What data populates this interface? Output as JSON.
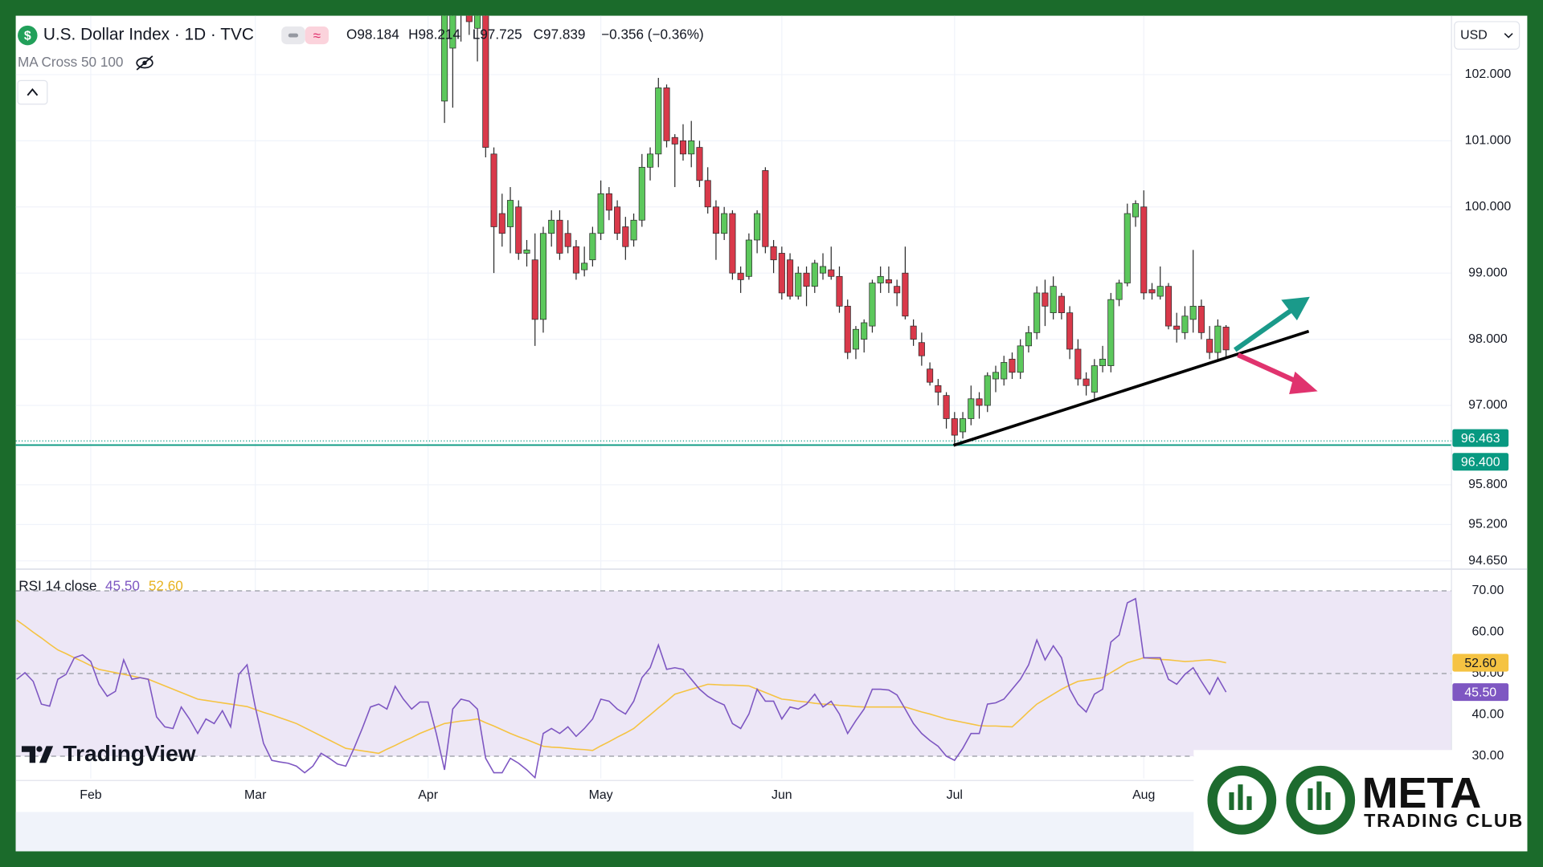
{
  "indicator": "MA Cross 50 100",
  "currency": "USD",
  "brand": "TradingView",
  "watermark": {
    "title": "META",
    "subtitle": "TRADING CLUB"
  },
  "chart_data": [
    {
      "type": "candlestick",
      "title": "U.S. Dollar Index · 1D · TVC",
      "header_values": [
        "O98.184",
        "H98.214",
        "L97.725",
        "C97.839",
        "−0.356 (−0.36%)"
      ],
      "up_color": "#5cc85c",
      "down_color": "#d9394a",
      "wick_color": "#2b2b2b",
      "grid": true,
      "categories": [
        null,
        null,
        null,
        null,
        null,
        null,
        null,
        null,
        null,
        "Feb",
        null,
        null,
        null,
        null,
        null,
        null,
        null,
        null,
        null,
        null,
        null,
        null,
        null,
        null,
        null,
        null,
        null,
        null,
        null,
        "Mar",
        null,
        null,
        null,
        null,
        null,
        null,
        null,
        null,
        null,
        null,
        null,
        null,
        null,
        null,
        null,
        null,
        null,
        null,
        null,
        null,
        "Apr",
        null,
        null,
        null,
        null,
        null,
        null,
        null,
        null,
        null,
        null,
        null,
        null,
        null,
        null,
        null,
        null,
        null,
        null,
        null,
        null,
        "May",
        null,
        null,
        null,
        null,
        null,
        null,
        null,
        null,
        null,
        null,
        null,
        null,
        null,
        null,
        null,
        null,
        null,
        null,
        null,
        null,
        null,
        "Jun",
        null,
        null,
        null,
        null,
        null,
        null,
        null,
        null,
        null,
        null,
        null,
        null,
        null,
        null,
        null,
        null,
        null,
        null,
        null,
        null,
        "Jul",
        null,
        null,
        null,
        null,
        null,
        null,
        null,
        null,
        null,
        null,
        null,
        null,
        null,
        null,
        null,
        null,
        null,
        null,
        null,
        null,
        null,
        null,
        "Aug",
        null,
        null,
        null,
        null,
        null,
        null,
        null,
        null,
        null,
        null
      ],
      "ohlc": [
        null,
        null,
        null,
        null,
        null,
        null,
        null,
        null,
        null,
        null,
        null,
        null,
        null,
        null,
        null,
        null,
        null,
        null,
        null,
        null,
        null,
        null,
        null,
        null,
        null,
        null,
        null,
        null,
        null,
        null,
        null,
        null,
        null,
        null,
        null,
        null,
        null,
        null,
        null,
        null,
        null,
        null,
        null,
        null,
        null,
        null,
        null,
        null,
        null,
        null,
        null,
        null,
        [
          101.6,
          103.2,
          101.27,
          103.0
        ],
        [
          102.4,
          103.3,
          101.5,
          102.9
        ],
        [
          103.3,
          103.6,
          102.5,
          102.9
        ],
        [
          103.1,
          103.5,
          102.6,
          102.8
        ],
        [
          102.7,
          103.2,
          102.2,
          103.0
        ],
        [
          102.9,
          103.2,
          100.75,
          100.9
        ],
        [
          100.8,
          100.9,
          99.0,
          99.7
        ],
        [
          99.9,
          100.2,
          99.4,
          99.6
        ],
        [
          99.7,
          100.3,
          99.3,
          100.1
        ],
        [
          100.0,
          100.1,
          99.2,
          99.3
        ],
        [
          99.3,
          99.5,
          99.1,
          99.35
        ],
        [
          99.2,
          99.6,
          97.9,
          98.3
        ],
        [
          98.3,
          99.7,
          98.1,
          99.6
        ],
        [
          99.6,
          99.95,
          99.4,
          99.8
        ],
        [
          99.8,
          99.95,
          99.2,
          99.3
        ],
        [
          99.6,
          99.8,
          99.3,
          99.4
        ],
        [
          99.4,
          99.5,
          98.9,
          99.0
        ],
        [
          99.05,
          99.4,
          98.95,
          99.15
        ],
        [
          99.2,
          99.7,
          99.1,
          99.6
        ],
        [
          99.6,
          100.4,
          99.5,
          100.2
        ],
        [
          100.2,
          100.3,
          99.8,
          99.95
        ],
        [
          100.0,
          100.1,
          99.5,
          99.6
        ],
        [
          99.7,
          99.85,
          99.2,
          99.4
        ],
        [
          99.5,
          99.9,
          99.4,
          99.8
        ],
        [
          99.8,
          100.8,
          99.7,
          100.6
        ],
        [
          100.6,
          100.9,
          100.4,
          100.8
        ],
        [
          100.8,
          101.95,
          100.6,
          101.8
        ],
        [
          101.8,
          101.85,
          100.9,
          101.0
        ],
        [
          101.05,
          101.1,
          100.3,
          100.95
        ],
        [
          101.0,
          101.25,
          100.7,
          100.8
        ],
        [
          100.8,
          101.3,
          100.6,
          101.0
        ],
        [
          100.9,
          101.0,
          100.3,
          100.4
        ],
        [
          100.4,
          100.6,
          99.9,
          100.0
        ],
        [
          100.0,
          100.1,
          99.2,
          99.6
        ],
        [
          99.6,
          100.0,
          99.5,
          99.9
        ],
        [
          99.9,
          99.95,
          98.9,
          99.0
        ],
        [
          99.0,
          99.1,
          98.7,
          98.9
        ],
        [
          98.95,
          99.6,
          98.9,
          99.5
        ],
        [
          99.5,
          99.95,
          99.3,
          99.9
        ],
        [
          100.55,
          100.6,
          99.3,
          99.4
        ],
        [
          99.4,
          99.5,
          99.0,
          99.2
        ],
        [
          99.3,
          99.4,
          98.6,
          98.7
        ],
        [
          99.2,
          99.3,
          98.6,
          98.65
        ],
        [
          98.65,
          99.1,
          98.6,
          99.0
        ],
        [
          99.0,
          99.1,
          98.5,
          98.8
        ],
        [
          98.8,
          99.2,
          98.7,
          99.15
        ],
        [
          99.0,
          99.3,
          98.9,
          99.1
        ],
        [
          99.05,
          99.4,
          98.9,
          98.95
        ],
        [
          98.95,
          99.1,
          98.4,
          98.5
        ],
        [
          98.5,
          98.6,
          97.7,
          97.8
        ],
        [
          97.85,
          98.2,
          97.7,
          98.15
        ],
        [
          98.0,
          98.3,
          97.8,
          98.25
        ],
        [
          98.2,
          98.9,
          98.1,
          98.85
        ],
        [
          98.85,
          99.1,
          98.7,
          98.95
        ],
        [
          98.9,
          99.1,
          98.7,
          98.85
        ],
        [
          98.8,
          98.9,
          98.5,
          98.7
        ],
        [
          99.0,
          99.4,
          98.3,
          98.35
        ],
        [
          98.2,
          98.3,
          97.9,
          98.0
        ],
        [
          97.95,
          98.1,
          97.6,
          97.75
        ],
        [
          97.55,
          97.65,
          97.3,
          97.35
        ],
        [
          97.3,
          97.4,
          97.0,
          97.2
        ],
        [
          97.15,
          97.2,
          96.65,
          96.8
        ],
        [
          96.8,
          96.9,
          96.4,
          96.55
        ],
        [
          96.6,
          96.9,
          96.5,
          96.8
        ],
        [
          96.8,
          97.3,
          96.7,
          97.1
        ],
        [
          97.1,
          97.2,
          96.8,
          97.0
        ],
        [
          97.0,
          97.5,
          96.9,
          97.45
        ],
        [
          97.4,
          97.6,
          97.2,
          97.5
        ],
        [
          97.4,
          97.75,
          97.3,
          97.65
        ],
        [
          97.7,
          97.8,
          97.4,
          97.5
        ],
        [
          97.5,
          98.0,
          97.4,
          97.9
        ],
        [
          97.9,
          98.2,
          97.8,
          98.1
        ],
        [
          98.1,
          98.8,
          98.0,
          98.7
        ],
        [
          98.7,
          98.9,
          98.2,
          98.5
        ],
        [
          98.4,
          98.95,
          98.3,
          98.8
        ],
        [
          98.65,
          98.7,
          98.3,
          98.4
        ],
        [
          98.4,
          98.5,
          97.7,
          97.85
        ],
        [
          97.85,
          98.0,
          97.3,
          97.4
        ],
        [
          97.4,
          97.5,
          97.15,
          97.3
        ],
        [
          97.2,
          97.7,
          97.1,
          97.6
        ],
        [
          97.6,
          97.9,
          97.5,
          97.7
        ],
        [
          97.6,
          98.7,
          97.5,
          98.6
        ],
        [
          98.6,
          98.9,
          98.5,
          98.85
        ],
        [
          98.85,
          100.05,
          98.8,
          99.9
        ],
        [
          99.85,
          100.1,
          99.7,
          100.05
        ],
        [
          100.0,
          100.25,
          98.6,
          98.7
        ],
        [
          98.75,
          98.85,
          98.6,
          98.7
        ],
        [
          98.65,
          99.1,
          98.6,
          98.8
        ],
        [
          98.8,
          98.85,
          98.15,
          98.2
        ],
        [
          98.2,
          98.4,
          97.95,
          98.15
        ],
        [
          98.1,
          98.5,
          98.0,
          98.35
        ],
        [
          98.3,
          99.35,
          98.1,
          98.5
        ],
        [
          98.5,
          98.6,
          98.0,
          98.1
        ],
        [
          98.0,
          98.2,
          97.7,
          97.8
        ],
        [
          97.8,
          98.3,
          97.7,
          98.2
        ],
        [
          98.184,
          98.214,
          97.725,
          97.839
        ]
      ],
      "ylim": [
        94.54,
        102.89
      ],
      "yticks": [
        {
          "value": 102,
          "label": "102.000"
        },
        {
          "value": 101,
          "label": "101.000"
        },
        {
          "value": 100,
          "label": "100.000"
        },
        {
          "value": 99,
          "label": "99.000"
        },
        {
          "value": 98,
          "label": "98.000"
        },
        {
          "value": 97,
          "label": "97.000"
        },
        {
          "value": 95.8,
          "label": "95.800"
        },
        {
          "value": 95.2,
          "label": "95.200"
        },
        {
          "value": 94.65,
          "label": "94.650"
        }
      ],
      "levels": [
        {
          "value": 96.463,
          "label": "96.463",
          "style": "dotted",
          "color": "#089981"
        },
        {
          "value": 96.4,
          "label": "96.400",
          "style": "solid",
          "color": "#089981"
        }
      ]
    },
    {
      "type": "line",
      "title": "RSI 14 close",
      "band": [
        30,
        70
      ],
      "band_color": "#ede7f6",
      "dashed": [
        70,
        50,
        30
      ],
      "series": [
        {
          "color": "#7e57c2",
          "last_label": "45.50",
          "values": [
            48.6,
            50.2,
            48.1,
            42.6,
            42.1,
            48.6,
            49.8,
            53.8,
            54.5,
            52.9,
            47.4,
            44.5,
            45.7,
            53.3,
            48.6,
            49.0,
            48.6,
            39.5,
            37.1,
            36.7,
            41.9,
            39.0,
            35.5,
            39.0,
            37.9,
            41.0,
            37.1,
            49.8,
            52.1,
            41.9,
            33.1,
            29.0,
            28.6,
            28.3,
            27.6,
            26.0,
            27.6,
            30.7,
            29.5,
            28.1,
            27.6,
            31.9,
            36.7,
            41.9,
            42.6,
            41.4,
            46.9,
            43.8,
            41.4,
            43.1,
            43.1,
            35.5,
            26.7,
            41.4,
            43.8,
            43.3,
            41.4,
            29.5,
            26.0,
            26.0,
            29.5,
            28.3,
            26.7,
            24.8,
            35.5,
            36.7,
            35.5,
            37.1,
            34.8,
            36.7,
            39.0,
            43.8,
            43.3,
            41.4,
            40.2,
            43.3,
            49.0,
            51.4,
            56.9,
            51.0,
            51.4,
            51.0,
            48.6,
            46.2,
            44.5,
            43.3,
            42.4,
            37.9,
            36.7,
            40.2,
            46.2,
            43.3,
            43.3,
            39.0,
            41.9,
            41.4,
            42.6,
            45.0,
            41.9,
            43.3,
            40.2,
            35.5,
            38.6,
            41.4,
            46.2,
            46.2,
            46.0,
            44.8,
            41.4,
            37.9,
            35.5,
            33.8,
            32.4,
            30.0,
            29.0,
            31.9,
            35.5,
            35.5,
            42.6,
            42.9,
            43.8,
            46.2,
            48.6,
            52.1,
            58.1,
            53.3,
            56.7,
            53.8,
            46.2,
            42.6,
            40.7,
            45.0,
            46.2,
            57.6,
            59.3,
            67.1,
            68.1,
            53.8,
            53.8,
            53.8,
            48.6,
            47.4,
            49.8,
            51.4,
            48.1,
            45.0,
            49.0,
            45.5
          ]
        },
        {
          "color": "#f5c342",
          "last_label": "52.60",
          "values": [
            62.9,
            61.5,
            60.0,
            58.6,
            57.1,
            55.7,
            54.8,
            53.8,
            52.9,
            51.9,
            51.0,
            50.6,
            50.2,
            49.8,
            49.4,
            49.0,
            48.6,
            47.8,
            47.0,
            46.2,
            45.4,
            44.6,
            43.8,
            43.5,
            43.2,
            42.9,
            42.6,
            42.3,
            42.0,
            41.3,
            40.6,
            40.0,
            39.3,
            38.6,
            37.9,
            36.9,
            35.9,
            34.9,
            33.9,
            32.9,
            31.9,
            31.6,
            31.3,
            31.0,
            30.7,
            31.7,
            32.6,
            33.6,
            34.5,
            35.5,
            36.3,
            37.1,
            37.9,
            38.2,
            38.5,
            38.7,
            39.0,
            38.1,
            37.3,
            36.4,
            35.5,
            34.7,
            34.0,
            33.2,
            32.4,
            32.2,
            32.1,
            31.9,
            31.7,
            31.6,
            31.4,
            32.5,
            33.5,
            34.6,
            35.6,
            36.7,
            38.4,
            40.0,
            41.7,
            43.3,
            45.0,
            45.6,
            46.2,
            46.8,
            47.4,
            47.3,
            47.2,
            47.2,
            47.1,
            47.0,
            46.2,
            45.4,
            44.6,
            43.8,
            43.6,
            43.3,
            43.1,
            42.8,
            42.6,
            42.5,
            42.3,
            42.2,
            42.0,
            41.9,
            41.9,
            41.9,
            41.9,
            41.9,
            41.9,
            41.3,
            40.7,
            40.2,
            39.6,
            39.0,
            38.6,
            38.2,
            37.8,
            37.4,
            37.3,
            37.3,
            37.2,
            37.1,
            38.9,
            40.8,
            42.6,
            43.8,
            45.0,
            46.2,
            47.2,
            48.1,
            48.4,
            48.7,
            49.0,
            50.2,
            51.4,
            52.6,
            53.2,
            53.8,
            53.6,
            53.4,
            53.3,
            53.1,
            52.9,
            53.0,
            53.2,
            53.3,
            53.0,
            52.6
          ]
        }
      ],
      "ylim": [
        24.6,
        75.0
      ],
      "yticks": [
        {
          "value": 70,
          "label": "70.00"
        },
        {
          "value": 60,
          "label": "60.00"
        },
        {
          "value": 50,
          "label": "50.00"
        },
        {
          "value": 40,
          "label": "40.00"
        },
        {
          "value": 30,
          "label": "30.00"
        }
      ]
    }
  ]
}
